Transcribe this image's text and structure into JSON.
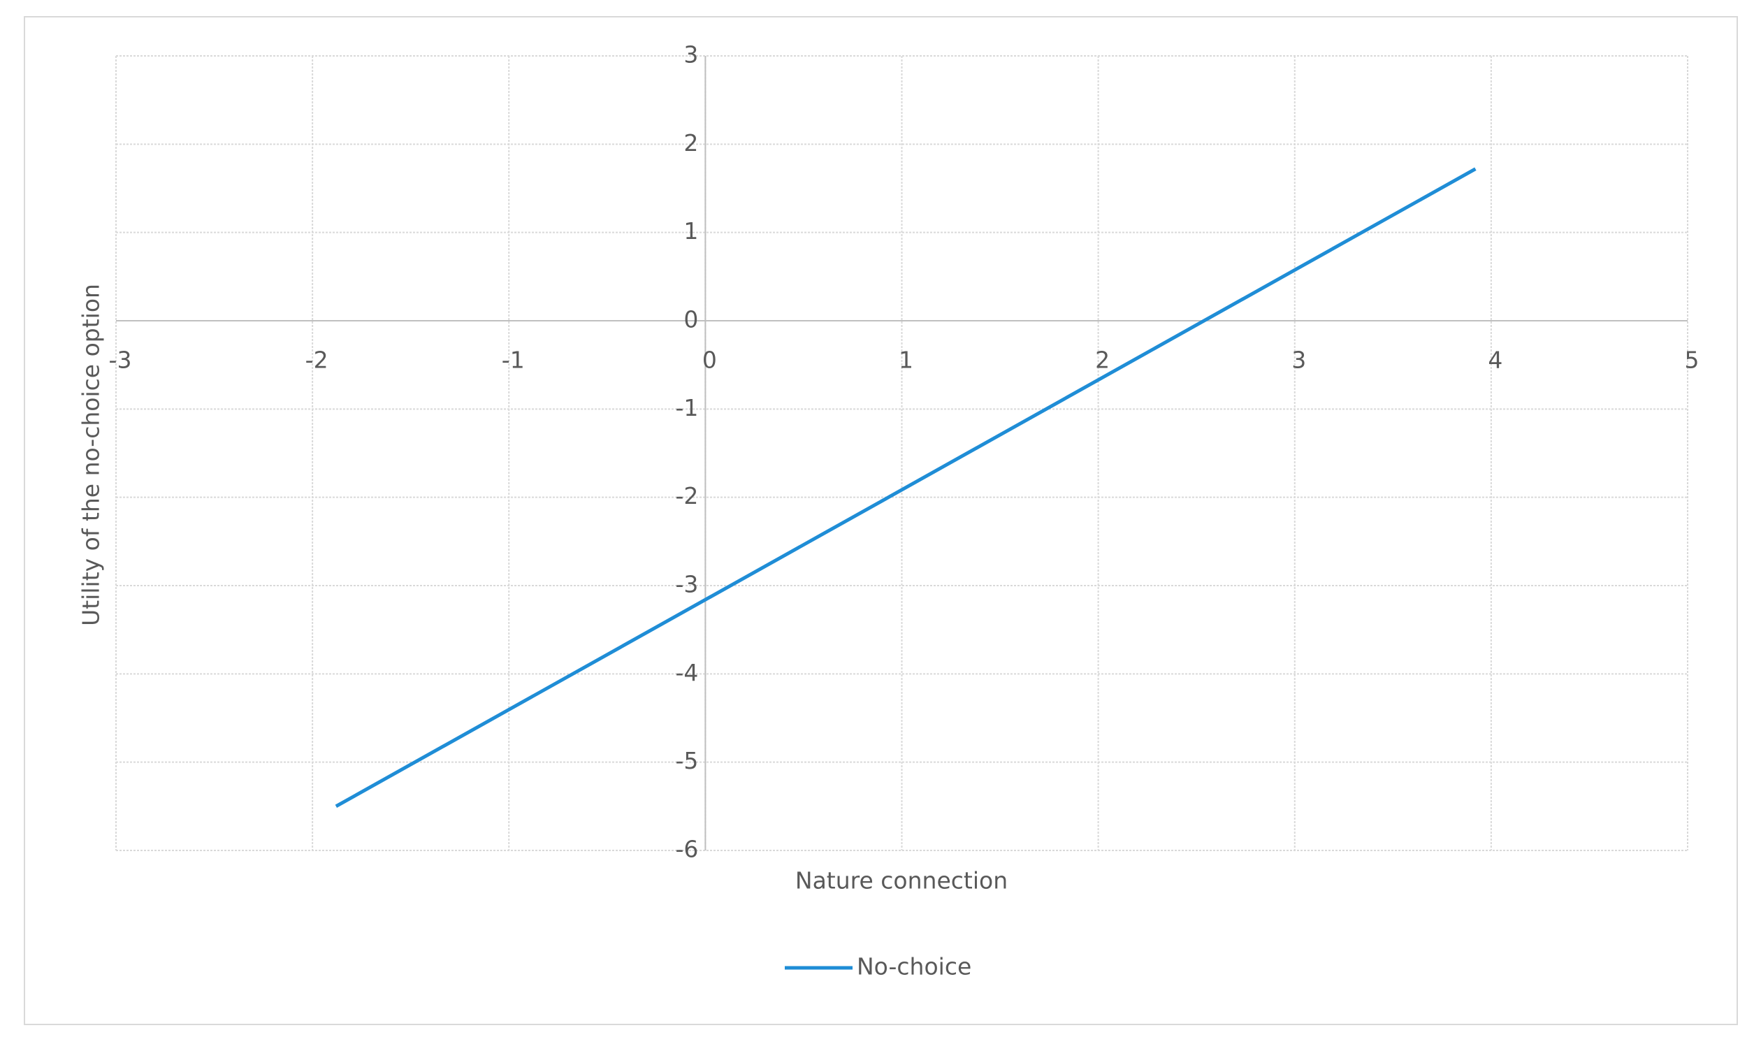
{
  "chart_data": {
    "type": "line",
    "x_label": "Nature connection",
    "y_label": "Utility of the no-choice option",
    "x": [
      -1.88,
      3.92
    ],
    "series": [
      {
        "name": "No-choice",
        "color": "#1f8dd6",
        "values": [
          -5.5,
          1.72
        ]
      }
    ],
    "xlim": [
      -3,
      5
    ],
    "xticks": [
      -3,
      -2,
      -1,
      0,
      1,
      2,
      3,
      4,
      5
    ],
    "ylim": [
      -6,
      3
    ],
    "yticks": [
      -6,
      -5,
      -4,
      -3,
      -2,
      -1,
      0,
      1,
      2,
      3
    ],
    "grid": true,
    "legend": "bottom"
  }
}
